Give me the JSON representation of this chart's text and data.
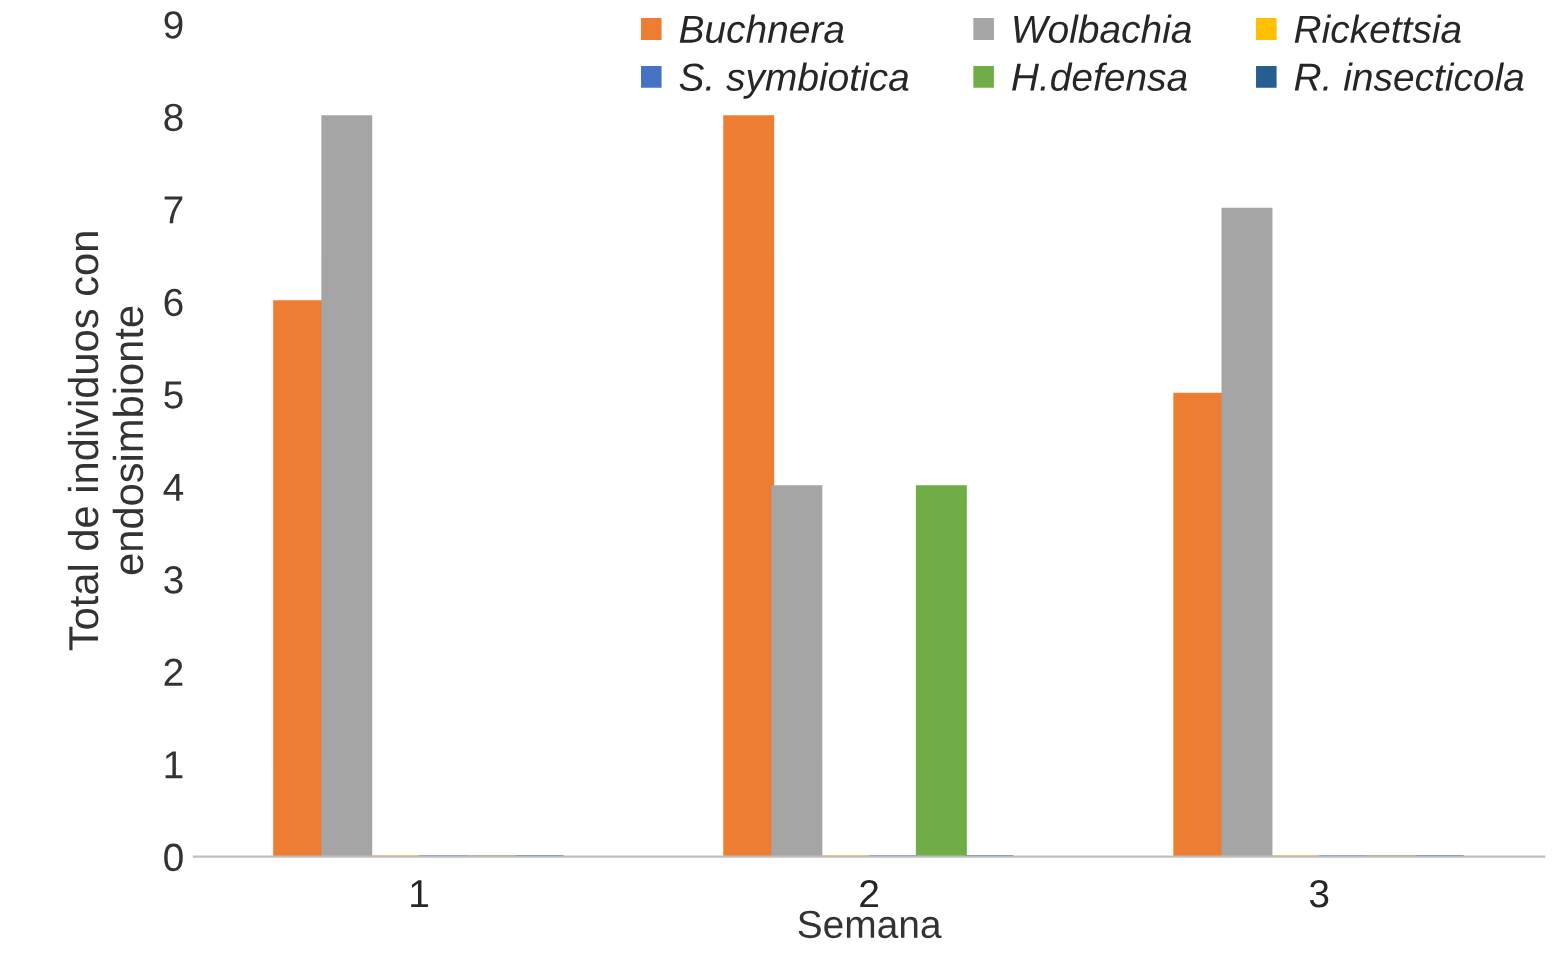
{
  "chart_data": {
    "type": "bar",
    "xlabel": "Semana",
    "ylabel": "Total de individuos con\nendosimbionte",
    "categories": [
      "1",
      "2",
      "3"
    ],
    "series": [
      {
        "name": "Buchnera",
        "color": "#ed7d31",
        "values": [
          6,
          8,
          5
        ]
      },
      {
        "name": "Wolbachia",
        "color": "#a5a5a5",
        "values": [
          8,
          4,
          7
        ]
      },
      {
        "name": "Rickettsia",
        "color": "#ffc000",
        "values": [
          0,
          0,
          0
        ]
      },
      {
        "name": "S. symbiotica",
        "color": "#4472c4",
        "values": [
          0,
          0,
          0
        ]
      },
      {
        "name": "H.defensa",
        "color": "#70ad47",
        "values": [
          0,
          4,
          0
        ]
      },
      {
        "name": "R. insecticola",
        "color": "#255e91",
        "values": [
          0,
          0,
          0
        ]
      }
    ],
    "ylim": [
      0,
      9
    ],
    "yticks": [
      0,
      1,
      2,
      3,
      4,
      5,
      6,
      7,
      8,
      9
    ],
    "grid": false,
    "legend": "top"
  }
}
